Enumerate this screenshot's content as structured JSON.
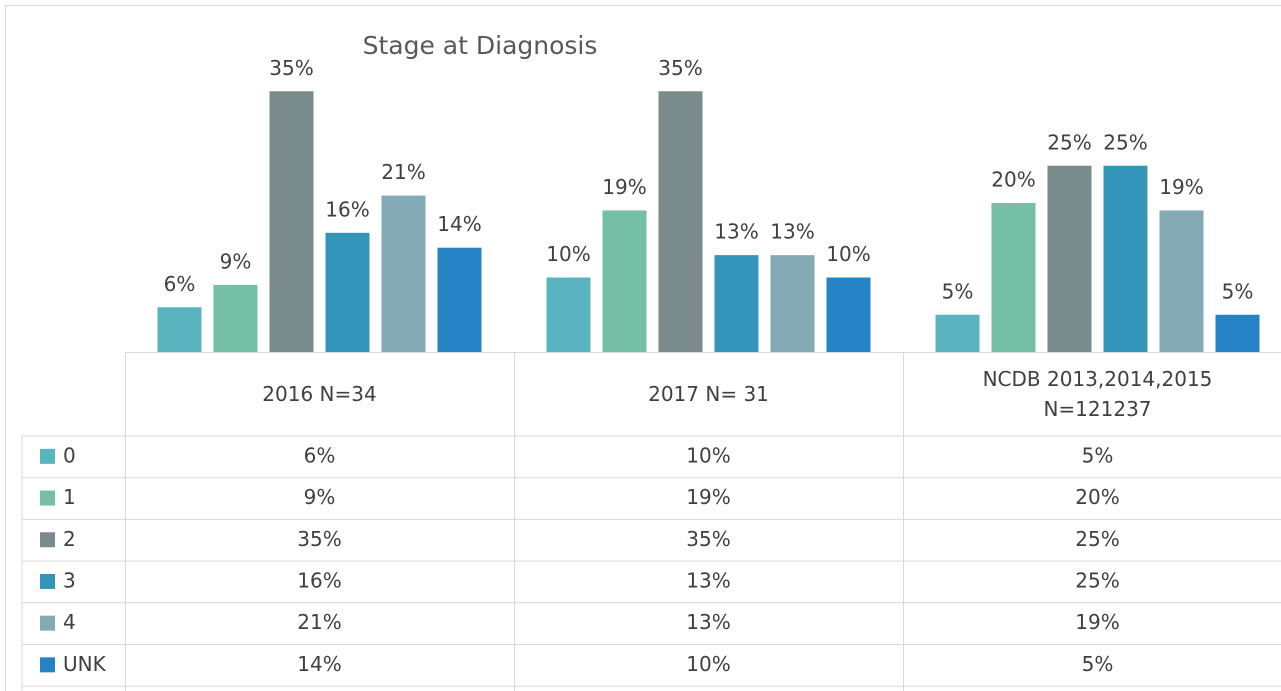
{
  "chart_data": {
    "type": "bar",
    "title": "Stage at Diagnosis",
    "categories": [
      "2016 N=34",
      "2017 N= 31",
      "NCDB 2013,2014,2015 N=121237"
    ],
    "ylim": [
      0,
      40
    ],
    "series": [
      {
        "name": "0",
        "color": "#5ab4c0",
        "values": [
          6,
          10,
          5
        ],
        "value_labels": [
          "6%",
          "10%",
          "5%"
        ]
      },
      {
        "name": "1",
        "color": "#74bfa6",
        "values": [
          9,
          19,
          20
        ],
        "value_labels": [
          "9%",
          "19%",
          "20%"
        ]
      },
      {
        "name": "2",
        "color": "#7a8b8c",
        "values": [
          35,
          35,
          25
        ],
        "value_labels": [
          "35%",
          "35%",
          "25%"
        ]
      },
      {
        "name": "3",
        "color": "#3594ba",
        "values": [
          16,
          13,
          25
        ],
        "value_labels": [
          "16%",
          "13%",
          "25%"
        ]
      },
      {
        "name": "4",
        "color": "#84aab5",
        "values": [
          21,
          13,
          19
        ],
        "value_labels": [
          "21%",
          "13%",
          "19%"
        ]
      },
      {
        "name": "UNK",
        "color": "#2683c6",
        "values": [
          14,
          10,
          5
        ],
        "value_labels": [
          "14%",
          "10%",
          "5%"
        ]
      }
    ]
  }
}
